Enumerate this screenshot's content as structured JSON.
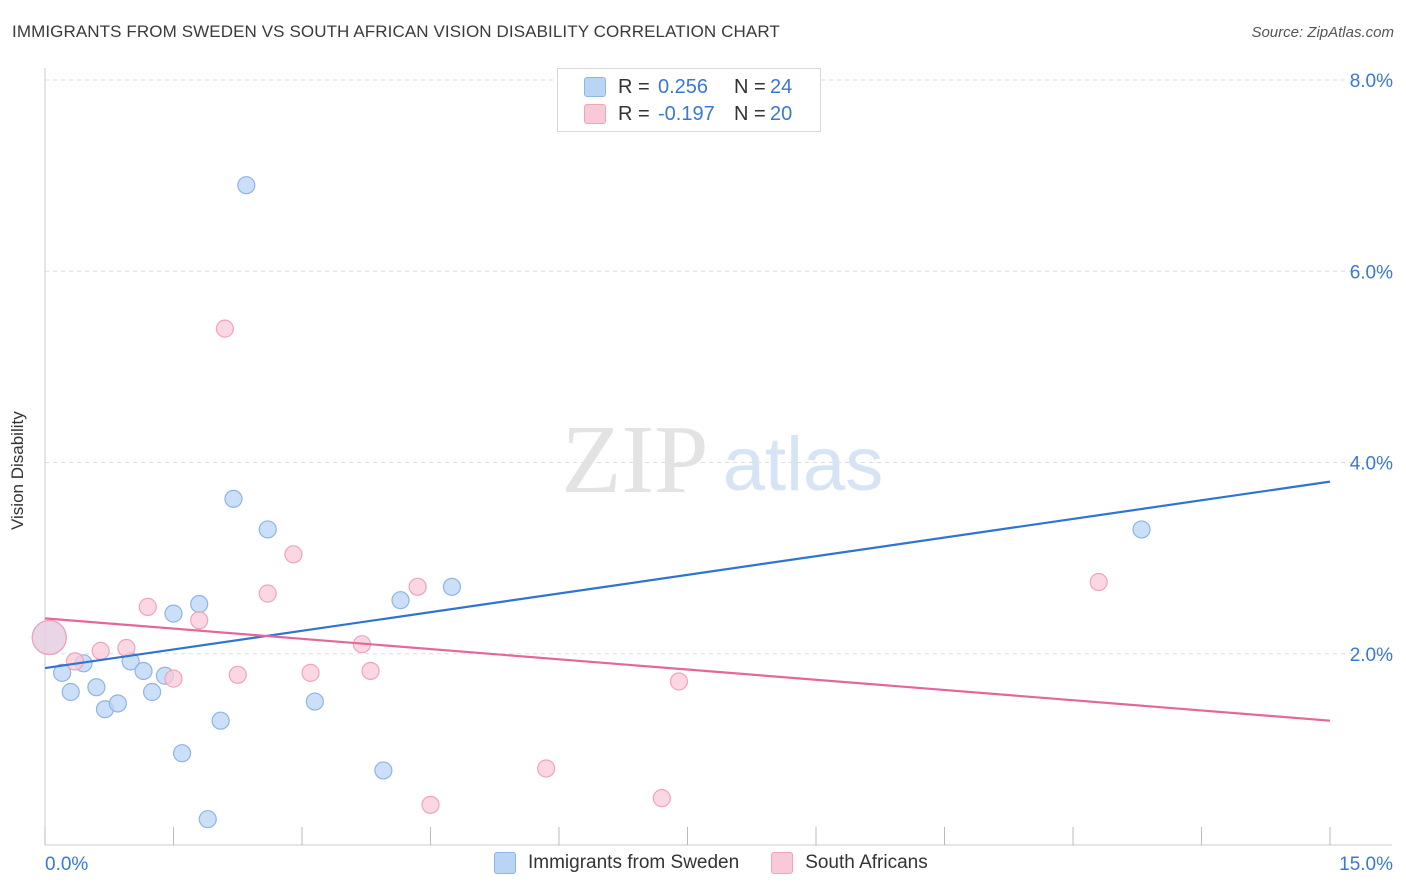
{
  "title": "IMMIGRANTS FROM SWEDEN VS SOUTH AFRICAN VISION DISABILITY CORRELATION CHART",
  "source": "Source: ZipAtlas.com",
  "watermark": {
    "zip": "ZIP",
    "atlas": "atlas"
  },
  "legend": {
    "rows": [
      {
        "r_label": "R =",
        "r_value": "0.256",
        "n_label": "N =",
        "n_value": "24"
      },
      {
        "r_label": "R =",
        "r_value": "-0.197",
        "n_label": "N =",
        "n_value": "20"
      }
    ]
  },
  "colors": {
    "blue_fill": "#b9d4f5",
    "blue_stroke": "#8fb5e4",
    "blue_line": "#2f74d0",
    "pink_fill": "#f9c9d8",
    "pink_stroke": "#f0a3bd",
    "pink_line": "#e5679a",
    "tick_label": "#3a78d4",
    "grid": "#dddddd"
  },
  "chart_data": {
    "type": "scatter",
    "title": "IMMIGRANTS FROM SWEDEN VS SOUTH AFRICAN VISION DISABILITY CORRELATION CHART",
    "xlabel": "",
    "ylabel": "Vision Disability",
    "xlim": [
      0,
      15
    ],
    "ylim": [
      0,
      8.2
    ],
    "x_tick_labels": [
      "0.0%",
      "15.0%"
    ],
    "y_ticks": [
      2,
      4,
      6,
      8
    ],
    "y_tick_labels": [
      "2.0%",
      "4.0%",
      "6.0%",
      "8.0%"
    ],
    "series": [
      {
        "name": "Immigrants from Sweden",
        "color": "#b9d4f5",
        "points": [
          {
            "x": 0.05,
            "y": 2.17,
            "big": true
          },
          {
            "x": 0.2,
            "y": 1.8
          },
          {
            "x": 0.3,
            "y": 1.6
          },
          {
            "x": 0.45,
            "y": 1.9
          },
          {
            "x": 0.6,
            "y": 1.65
          },
          {
            "x": 0.7,
            "y": 1.42
          },
          {
            "x": 0.85,
            "y": 1.48
          },
          {
            "x": 1.0,
            "y": 1.92
          },
          {
            "x": 1.15,
            "y": 1.82
          },
          {
            "x": 1.25,
            "y": 1.6
          },
          {
            "x": 1.4,
            "y": 1.77
          },
          {
            "x": 1.5,
            "y": 2.42
          },
          {
            "x": 1.6,
            "y": 0.96
          },
          {
            "x": 1.8,
            "y": 2.52
          },
          {
            "x": 1.9,
            "y": 0.27
          },
          {
            "x": 2.05,
            "y": 1.3
          },
          {
            "x": 2.2,
            "y": 3.62
          },
          {
            "x": 2.35,
            "y": 6.9
          },
          {
            "x": 2.6,
            "y": 3.3
          },
          {
            "x": 3.15,
            "y": 1.5
          },
          {
            "x": 3.95,
            "y": 0.78
          },
          {
            "x": 4.15,
            "y": 2.56
          },
          {
            "x": 4.75,
            "y": 2.7
          },
          {
            "x": 12.8,
            "y": 3.3
          }
        ],
        "trend": {
          "x": [
            0,
            15
          ],
          "y": [
            1.85,
            3.8
          ]
        }
      },
      {
        "name": "South Africans",
        "color": "#f9c9d8",
        "points": [
          {
            "x": 0.05,
            "y": 2.17,
            "big": true
          },
          {
            "x": 0.35,
            "y": 1.92
          },
          {
            "x": 0.65,
            "y": 2.03
          },
          {
            "x": 0.95,
            "y": 2.06
          },
          {
            "x": 1.2,
            "y": 2.49
          },
          {
            "x": 1.5,
            "y": 1.74
          },
          {
            "x": 1.8,
            "y": 2.35
          },
          {
            "x": 2.1,
            "y": 5.4
          },
          {
            "x": 2.25,
            "y": 1.78
          },
          {
            "x": 2.6,
            "y": 2.63
          },
          {
            "x": 2.9,
            "y": 3.04
          },
          {
            "x": 3.1,
            "y": 1.8
          },
          {
            "x": 3.7,
            "y": 2.1
          },
          {
            "x": 3.8,
            "y": 1.82
          },
          {
            "x": 4.35,
            "y": 2.7
          },
          {
            "x": 4.5,
            "y": 0.42
          },
          {
            "x": 5.85,
            "y": 0.8
          },
          {
            "x": 7.2,
            "y": 0.49
          },
          {
            "x": 7.4,
            "y": 1.71
          },
          {
            "x": 12.3,
            "y": 2.75
          }
        ],
        "trend": {
          "x": [
            0,
            15
          ],
          "y": [
            2.37,
            1.3
          ]
        }
      }
    ]
  }
}
